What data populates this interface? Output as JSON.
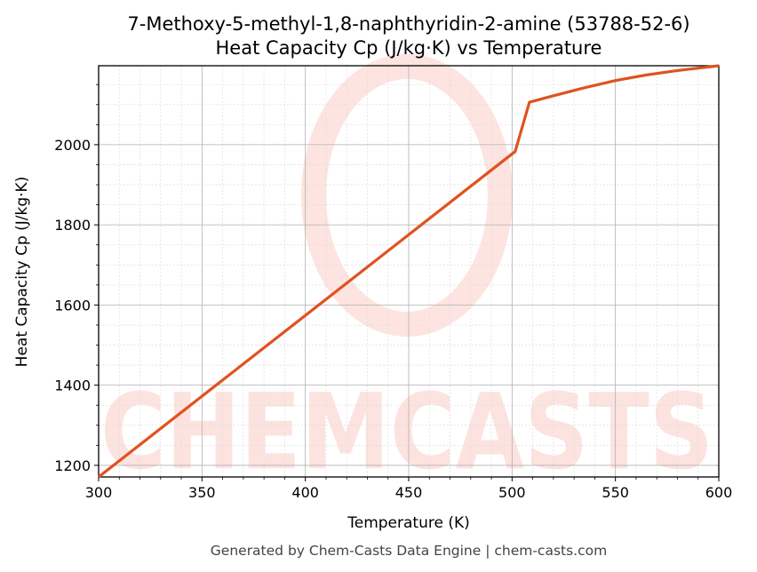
{
  "chart_data": {
    "type": "line",
    "title": "7-Methoxy-5-methyl-1,8-naphthyridin-2-amine (53788-52-6)",
    "subtitle": "Heat Capacity Cp (J/kg·K) vs Temperature",
    "xlabel": "Temperature (K)",
    "ylabel": "Heat Capacity Cp (J/kg·K)",
    "xlim": [
      300,
      600
    ],
    "ylim": [
      1171,
      2197
    ],
    "xticks": [
      "300",
      "350",
      "400",
      "450",
      "500",
      "550",
      "600"
    ],
    "yticks": [
      "1200",
      "1400",
      "1600",
      "1800",
      "2000"
    ],
    "grid": true,
    "series": [
      {
        "name": "Cp",
        "color": "#e0521f",
        "x": [
          300,
          501.5,
          508.4,
          520,
          535,
          550,
          565,
          580,
          600
        ],
        "y": [
          1171,
          1983,
          2106,
          2122,
          2142,
          2160,
          2174,
          2185,
          2197
        ]
      }
    ],
    "watermark": "CHEMCASTS",
    "footer": "Generated by Chem-Casts Data Engine | chem-casts.com"
  }
}
